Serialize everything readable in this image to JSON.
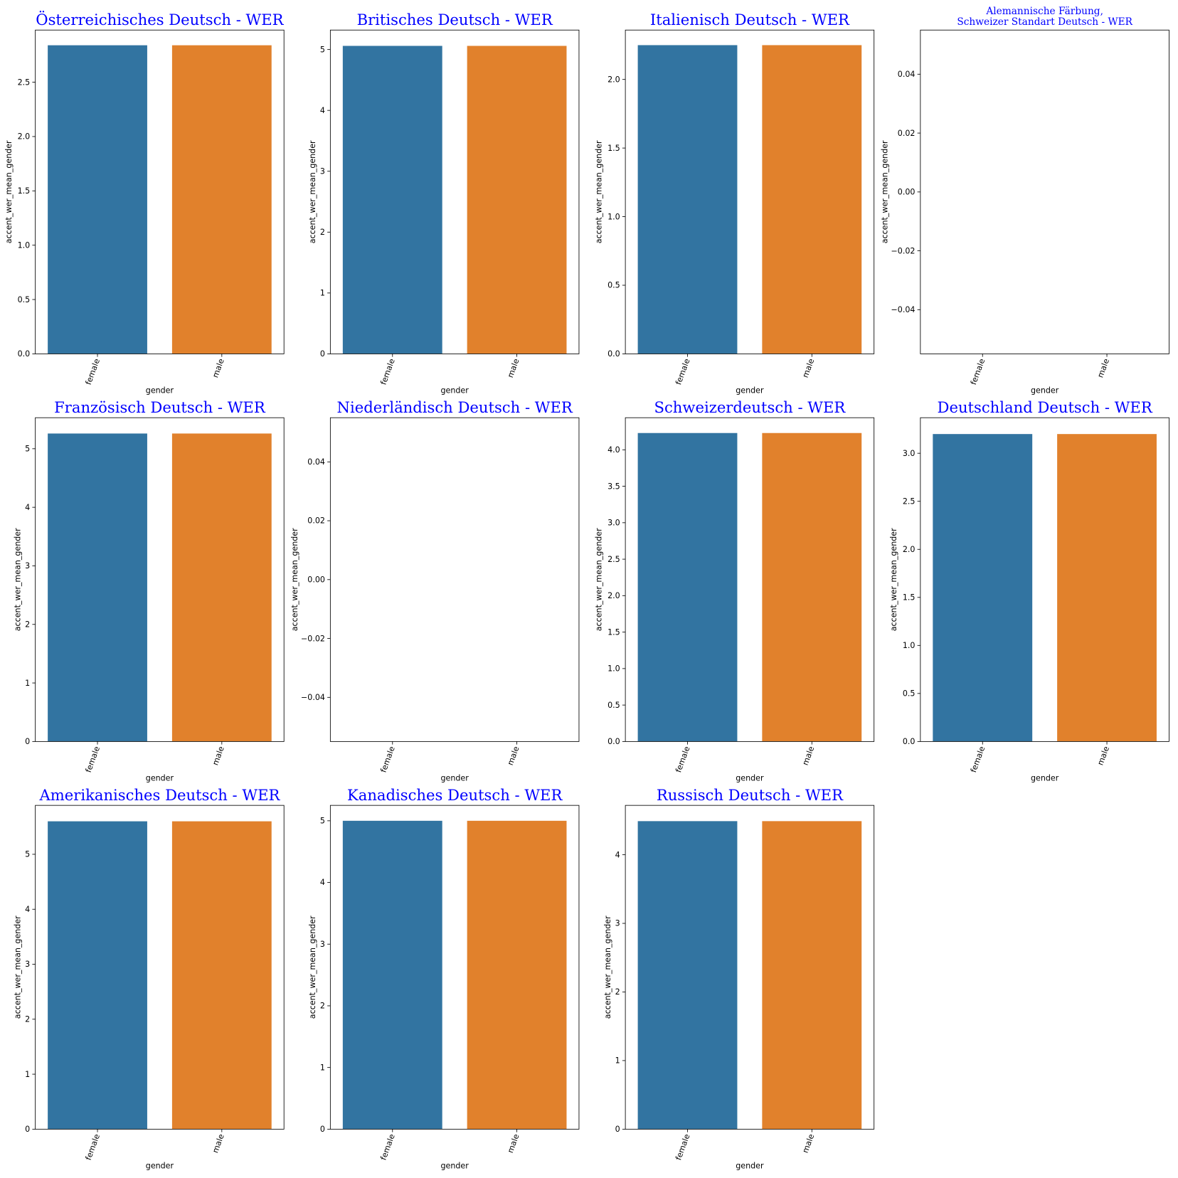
{
  "chart_data": [
    {
      "type": "bar",
      "title": "Österreichisches Deutsch - WER",
      "categories": [
        "female",
        "male"
      ],
      "values": [
        2.84,
        2.84
      ],
      "colors": [
        "#3274a1",
        "#e1812c"
      ],
      "xlabel": "gender",
      "ylabel": "accent_wer_mean_gender",
      "ylim": [
        0,
        2.98
      ],
      "yticks": [
        {
          "value": 0,
          "label": "0.0"
        },
        0.5,
        {
          "value": 1,
          "label": "1.0"
        },
        1.5,
        {
          "value": 2,
          "label": "2.0"
        },
        2.5
      ]
    },
    {
      "type": "bar",
      "title": "Britisches Deutsch - WER",
      "categories": [
        "female",
        "male"
      ],
      "values": [
        5.06,
        5.06
      ],
      "colors": [
        "#3274a1",
        "#e1812c"
      ],
      "xlabel": "gender",
      "ylabel": "accent_wer_mean_gender",
      "ylim": [
        0,
        5.32
      ],
      "yticks": [
        0,
        1,
        2,
        3,
        4,
        5
      ]
    },
    {
      "type": "bar",
      "title": "Italienisch Deutsch - WER",
      "categories": [
        "female",
        "male"
      ],
      "values": [
        2.25,
        2.25
      ],
      "colors": [
        "#3274a1",
        "#e1812c"
      ],
      "xlabel": "gender",
      "ylabel": "accent_wer_mean_gender",
      "ylim": [
        0,
        2.36
      ],
      "yticks": [
        {
          "value": 0,
          "label": "0.0"
        },
        0.5,
        {
          "value": 1,
          "label": "1.0"
        },
        1.5,
        {
          "value": 2,
          "label": "2.0"
        }
      ]
    },
    {
      "type": "bar",
      "title": [
        "Alemannische Färbung,",
        "Schweizer Standart Deutsch - WER"
      ],
      "categories": [
        "female",
        "male"
      ],
      "values": [
        0,
        0
      ],
      "colors": [
        "#3274a1",
        "#e1812c"
      ],
      "xlabel": "gender",
      "ylabel": "accent_wer_mean_gender",
      "ylim": [
        -0.055,
        0.055
      ],
      "yticks": [
        {
          "value": -0.04,
          "label": "−0.04"
        },
        {
          "value": -0.02,
          "label": "−0.02"
        },
        {
          "value": 0,
          "label": "0.00"
        },
        0.02,
        0.04
      ]
    },
    {
      "type": "bar",
      "title": "Französisch Deutsch - WER",
      "categories": [
        "female",
        "male"
      ],
      "values": [
        5.26,
        5.26
      ],
      "colors": [
        "#3274a1",
        "#e1812c"
      ],
      "xlabel": "gender",
      "ylabel": "accent_wer_mean_gender",
      "ylim": [
        0,
        5.53
      ],
      "yticks": [
        0,
        1,
        2,
        3,
        4,
        5
      ]
    },
    {
      "type": "bar",
      "title": "Niederländisch Deutsch - WER",
      "categories": [
        "female",
        "male"
      ],
      "values": [
        0,
        0
      ],
      "colors": [
        "#3274a1",
        "#e1812c"
      ],
      "xlabel": "gender",
      "ylabel": "accent_wer_mean_gender",
      "ylim": [
        -0.055,
        0.055
      ],
      "yticks": [
        {
          "value": -0.04,
          "label": "−0.04"
        },
        {
          "value": -0.02,
          "label": "−0.02"
        },
        {
          "value": 0,
          "label": "0.00"
        },
        0.02,
        0.04
      ]
    },
    {
      "type": "bar",
      "title": "Schweizerdeutsch - WER",
      "categories": [
        "female",
        "male"
      ],
      "values": [
        4.23,
        4.23
      ],
      "colors": [
        "#3274a1",
        "#e1812c"
      ],
      "xlabel": "gender",
      "ylabel": "accent_wer_mean_gender",
      "ylim": [
        0,
        4.44
      ],
      "yticks": [
        {
          "value": 0,
          "label": "0.0"
        },
        0.5,
        {
          "value": 1,
          "label": "1.0"
        },
        1.5,
        {
          "value": 2,
          "label": "2.0"
        },
        2.5,
        {
          "value": 3,
          "label": "3.0"
        },
        3.5,
        {
          "value": 4,
          "label": "4.0"
        }
      ]
    },
    {
      "type": "bar",
      "title": "Deutschland Deutsch - WER",
      "categories": [
        "female",
        "male"
      ],
      "values": [
        3.2,
        3.2
      ],
      "colors": [
        "#3274a1",
        "#e1812c"
      ],
      "xlabel": "gender",
      "ylabel": "accent_wer_mean_gender",
      "ylim": [
        0,
        3.37
      ],
      "yticks": [
        {
          "value": 0,
          "label": "0.0"
        },
        0.5,
        {
          "value": 1,
          "label": "1.0"
        },
        1.5,
        {
          "value": 2,
          "label": "2.0"
        },
        2.5,
        {
          "value": 3,
          "label": "3.0"
        }
      ]
    },
    {
      "type": "bar",
      "title": "Amerikanisches Deutsch - WER",
      "categories": [
        "female",
        "male"
      ],
      "values": [
        5.6,
        5.6
      ],
      "colors": [
        "#3274a1",
        "#e1812c"
      ],
      "xlabel": "gender",
      "ylabel": "accent_wer_mean_gender",
      "ylim": [
        0,
        5.89
      ],
      "yticks": [
        0,
        1,
        2,
        3,
        4,
        5
      ]
    },
    {
      "type": "bar",
      "title": "Kanadisches Deutsch - WER",
      "categories": [
        "female",
        "male"
      ],
      "values": [
        5.0,
        5.0
      ],
      "colors": [
        "#3274a1",
        "#e1812c"
      ],
      "xlabel": "gender",
      "ylabel": "accent_wer_mean_gender",
      "ylim": [
        0,
        5.25
      ],
      "yticks": [
        0,
        1,
        2,
        3,
        4,
        5
      ]
    },
    {
      "type": "bar",
      "title": "Russisch Deutsch - WER",
      "categories": [
        "female",
        "male"
      ],
      "values": [
        4.49,
        4.49
      ],
      "colors": [
        "#3274a1",
        "#e1812c"
      ],
      "xlabel": "gender",
      "ylabel": "accent_wer_mean_gender",
      "ylim": [
        0,
        4.72
      ],
      "yticks": [
        0,
        1,
        2,
        3,
        4
      ]
    }
  ]
}
